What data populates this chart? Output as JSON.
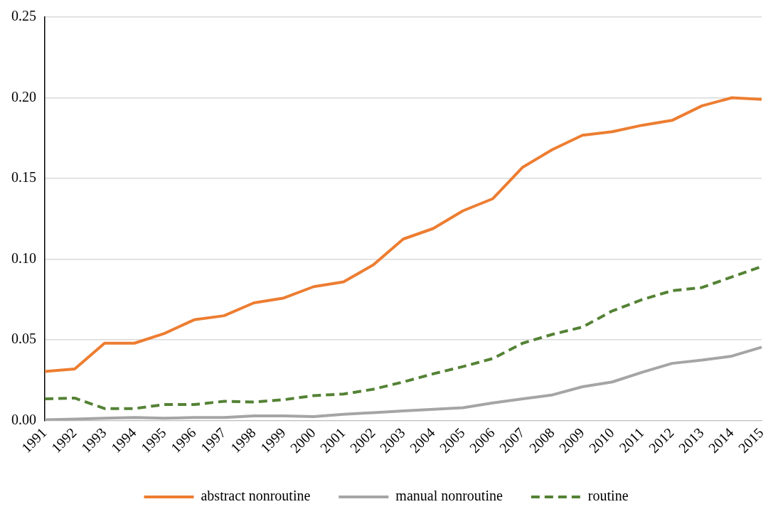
{
  "chart_data": {
    "type": "line",
    "categories": [
      "1991",
      "1992",
      "1993",
      "1994",
      "1995",
      "1996",
      "1997",
      "1998",
      "1999",
      "2000",
      "2001",
      "2002",
      "2003",
      "2004",
      "2005",
      "2006",
      "2007",
      "2008",
      "2009",
      "2010",
      "2011",
      "2012",
      "2013",
      "2014",
      "2015"
    ],
    "series": [
      {
        "name": "abstract nonroutine",
        "color": "#ed7d31",
        "line_style": "solid",
        "values": [
          0.0305,
          0.032,
          0.048,
          0.048,
          0.054,
          0.0625,
          0.065,
          0.073,
          0.076,
          0.083,
          0.086,
          0.0965,
          0.1125,
          0.119,
          0.13,
          0.1375,
          0.157,
          0.168,
          0.1768,
          0.179,
          0.183,
          0.186,
          0.195,
          0.2,
          0.199
        ]
      },
      {
        "name": "manual nonroutine",
        "color": "#a5a5a5",
        "line_style": "solid",
        "values": [
          0.0005,
          0.001,
          0.0015,
          0.002,
          0.0015,
          0.002,
          0.002,
          0.003,
          0.003,
          0.0025,
          0.004,
          0.005,
          0.006,
          0.007,
          0.008,
          0.011,
          0.0135,
          0.016,
          0.021,
          0.024,
          0.03,
          0.0355,
          0.0375,
          0.04,
          0.0455
        ]
      },
      {
        "name": "routine",
        "color": "#548235",
        "line_style": "dashed",
        "values": [
          0.0135,
          0.014,
          0.0075,
          0.0075,
          0.01,
          0.01,
          0.012,
          0.0115,
          0.013,
          0.0155,
          0.0165,
          0.0195,
          0.024,
          0.029,
          0.0335,
          0.0385,
          0.048,
          0.0535,
          0.058,
          0.068,
          0.075,
          0.0805,
          0.0825,
          0.089,
          0.0955
        ]
      }
    ],
    "ylim": [
      0,
      0.25
    ],
    "yticks": [
      {
        "value": 0,
        "label": "0.00"
      },
      {
        "value": 0.05,
        "label": "0.05"
      },
      {
        "value": 0.1,
        "label": "0.10"
      },
      {
        "value": 0.15,
        "label": "0.15"
      },
      {
        "value": 0.2,
        "label": "0.20"
      },
      {
        "value": 0.25,
        "label": "0.25"
      }
    ],
    "grid": "y",
    "legend": "bottom",
    "marker": "none"
  }
}
